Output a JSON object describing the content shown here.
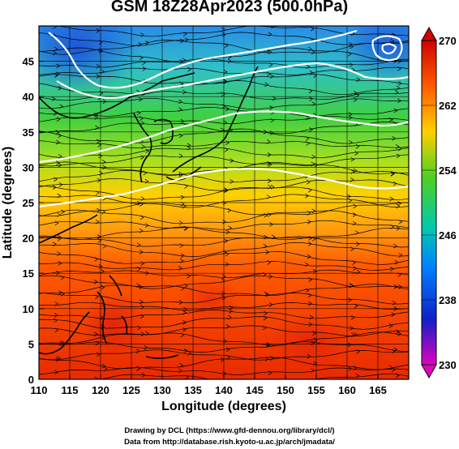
{
  "title": "GSM 18Z28Apr2023 (500.0hPa)",
  "xlabel": "Longitude (degrees)",
  "ylabel": "Latitude  (degrees)",
  "x_ticks": [
    "110",
    "115",
    "120",
    "125",
    "130",
    "135",
    "140",
    "145",
    "150",
    "155",
    "160",
    "165"
  ],
  "y_ticks": [
    "0",
    "5",
    "10",
    "15",
    "20",
    "25",
    "30",
    "35",
    "40",
    "45"
  ],
  "colorbar": {
    "labels": [
      "270",
      "262",
      "254",
      "246",
      "238",
      "230"
    ],
    "colors": [
      "#d00000",
      "#ff5a00",
      "#ffd000",
      "#50d020",
      "#00c8b0",
      "#0080ff",
      "#1020c8",
      "#e000c0"
    ]
  },
  "footer": {
    "line1": "Drawing by DCL (https://www.gfd-dennou.org/library/dcl/)",
    "line2": "Data from http://database.rish.kyoto-u.ac.jp/arch/jmadata/"
  },
  "chart_data": {
    "type": "heatmap",
    "title": "GSM 18Z28Apr2023 (500.0hPa)",
    "xlabel": "Longitude (degrees)",
    "ylabel": "Latitude  (degrees)",
    "xlim": [
      110,
      170
    ],
    "ylim": [
      0,
      50
    ],
    "colorbar_range": [
      230,
      270
    ],
    "overlay": "wind streamlines and white contour lines",
    "temperature_by_latitude": [
      {
        "lat": 0,
        "value": 268
      },
      {
        "lat": 10,
        "value": 268
      },
      {
        "lat": 20,
        "value": 266
      },
      {
        "lat": 25,
        "value": 262
      },
      {
        "lat": 30,
        "value": 258
      },
      {
        "lat": 35,
        "value": 254
      },
      {
        "lat": 40,
        "value": 250
      },
      {
        "lat": 45,
        "value": 246
      },
      {
        "lat": 50,
        "value": 242
      }
    ]
  }
}
